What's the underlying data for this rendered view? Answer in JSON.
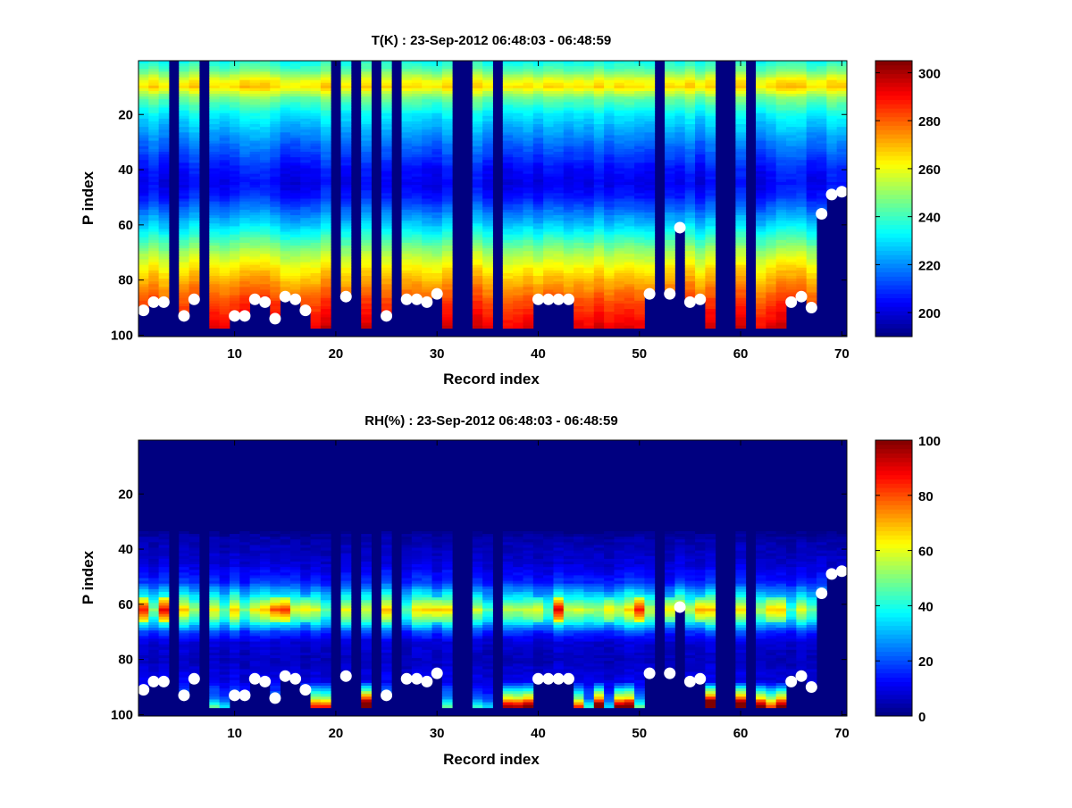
{
  "chart_data": [
    {
      "type": "heatmap",
      "id": "temperature",
      "title": "T(K) : 23-Sep-2012 06:48:03 - 06:48:59",
      "xlabel": "Record index",
      "ylabel": "P index",
      "xlim": [
        0.5,
        70.5
      ],
      "ylim": [
        100.5,
        0.5
      ],
      "xticks": [
        10,
        20,
        30,
        40,
        50,
        60,
        70
      ],
      "yticks": [
        20,
        40,
        60,
        80,
        100
      ],
      "colormap": "jet",
      "clim": [
        190,
        305
      ],
      "colorbar_ticks": [
        200,
        220,
        240,
        260,
        280,
        300
      ],
      "profile": {
        "description": "mean temperature (K) vs P index",
        "p": [
          1,
          4,
          8,
          10,
          14,
          20,
          30,
          40,
          45,
          50,
          60,
          70,
          76,
          82,
          88,
          94,
          97
        ],
        "value": [
          236,
          244,
          262,
          266,
          246,
          232,
          218,
          206,
          203,
          208,
          228,
          252,
          264,
          274,
          283,
          290,
          294
        ]
      }
    },
    {
      "type": "heatmap",
      "id": "relative-humidity",
      "title": "RH(%) : 23-Sep-2012 06:48:03 - 06:48:59",
      "xlabel": "Record index",
      "ylabel": "P index",
      "xlim": [
        0.5,
        70.5
      ],
      "ylim": [
        100.5,
        0.5
      ],
      "xticks": [
        10,
        20,
        30,
        40,
        50,
        60,
        70
      ],
      "yticks": [
        20,
        40,
        60,
        80,
        100
      ],
      "colormap": "jet",
      "clim": [
        0,
        100
      ],
      "colorbar_ticks": [
        0,
        20,
        40,
        60,
        80,
        100
      ],
      "profile": {
        "description": "mean relative humidity (%) vs P index",
        "p": [
          1,
          33,
          36,
          45,
          52,
          58,
          62,
          66,
          70,
          74,
          80,
          88,
          94,
          97
        ],
        "value": [
          0,
          0,
          4,
          8,
          16,
          38,
          56,
          40,
          18,
          8,
          6,
          10,
          22,
          40
        ]
      },
      "surface_moist_records": [
        13,
        16,
        17,
        18,
        19,
        23,
        30,
        37,
        38,
        39,
        44,
        46,
        48,
        49,
        57,
        60,
        62,
        63,
        64
      ],
      "band_strong_records": [
        1,
        3,
        14,
        15,
        17,
        30,
        40,
        42,
        47,
        50,
        53,
        56,
        63,
        64
      ]
    }
  ],
  "records": {
    "count": 70,
    "missing": [
      4,
      7,
      20,
      22,
      24,
      26,
      32,
      33,
      36,
      52,
      58,
      59,
      61
    ],
    "default_bottom_p": 97,
    "surface_markers": [
      {
        "record": 1,
        "p": 91
      },
      {
        "record": 2,
        "p": 88
      },
      {
        "record": 3,
        "p": 88
      },
      {
        "record": 5,
        "p": 93
      },
      {
        "record": 6,
        "p": 87
      },
      {
        "record": 10,
        "p": 93
      },
      {
        "record": 11,
        "p": 93
      },
      {
        "record": 12,
        "p": 87
      },
      {
        "record": 13,
        "p": 88
      },
      {
        "record": 14,
        "p": 94
      },
      {
        "record": 15,
        "p": 86
      },
      {
        "record": 16,
        "p": 87
      },
      {
        "record": 17,
        "p": 91
      },
      {
        "record": 21,
        "p": 86
      },
      {
        "record": 25,
        "p": 93
      },
      {
        "record": 27,
        "p": 87
      },
      {
        "record": 28,
        "p": 87
      },
      {
        "record": 29,
        "p": 88
      },
      {
        "record": 30,
        "p": 85
      },
      {
        "record": 40,
        "p": 87
      },
      {
        "record": 41,
        "p": 87
      },
      {
        "record": 42,
        "p": 87
      },
      {
        "record": 43,
        "p": 87
      },
      {
        "record": 51,
        "p": 85
      },
      {
        "record": 53,
        "p": 85
      },
      {
        "record": 54,
        "p": 61
      },
      {
        "record": 55,
        "p": 88
      },
      {
        "record": 56,
        "p": 87
      },
      {
        "record": 65,
        "p": 88
      },
      {
        "record": 66,
        "p": 86
      },
      {
        "record": 67,
        "p": 90
      },
      {
        "record": 68,
        "p": 56
      },
      {
        "record": 69,
        "p": 49
      },
      {
        "record": 70,
        "p": 48
      }
    ]
  }
}
